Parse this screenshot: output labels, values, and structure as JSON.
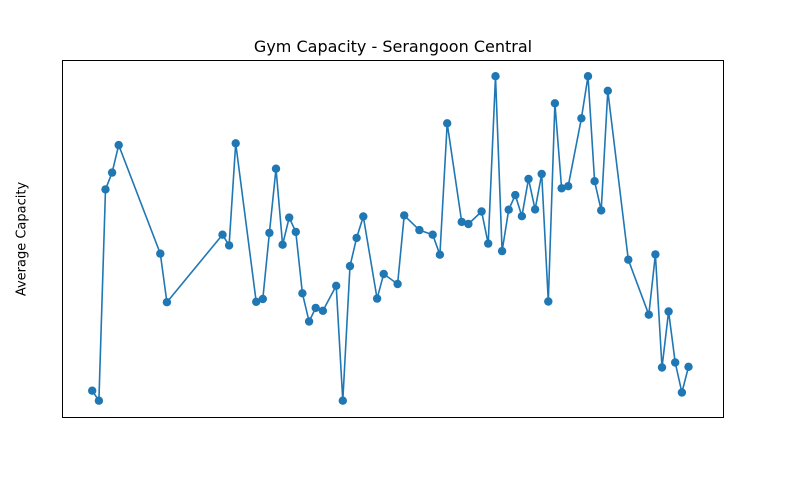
{
  "chart_data": {
    "type": "line",
    "title": "Gym Capacity - Serangoon Central",
    "xlabel": "",
    "ylabel": "Average Capacity",
    "xticks": false,
    "yticks": false,
    "grid": false,
    "xlim": [
      0,
      1
    ],
    "ylim": [
      0,
      1
    ],
    "series": [
      {
        "color": "#1f77b4",
        "marker": "circle",
        "points": [
          [
            0.045,
            0.075
          ],
          [
            0.055,
            0.047
          ],
          [
            0.065,
            0.639
          ],
          [
            0.075,
            0.686
          ],
          [
            0.085,
            0.763
          ],
          [
            0.148,
            0.459
          ],
          [
            0.158,
            0.323
          ],
          [
            0.242,
            0.512
          ],
          [
            0.252,
            0.482
          ],
          [
            0.262,
            0.768
          ],
          [
            0.293,
            0.324
          ],
          [
            0.303,
            0.332
          ],
          [
            0.313,
            0.517
          ],
          [
            0.323,
            0.697
          ],
          [
            0.333,
            0.484
          ],
          [
            0.343,
            0.56
          ],
          [
            0.353,
            0.52
          ],
          [
            0.363,
            0.348
          ],
          [
            0.373,
            0.269
          ],
          [
            0.383,
            0.307
          ],
          [
            0.394,
            0.299
          ],
          [
            0.414,
            0.369
          ],
          [
            0.424,
            0.047
          ],
          [
            0.435,
            0.424
          ],
          [
            0.445,
            0.503
          ],
          [
            0.455,
            0.563
          ],
          [
            0.476,
            0.333
          ],
          [
            0.486,
            0.402
          ],
          [
            0.507,
            0.374
          ],
          [
            0.517,
            0.566
          ],
          [
            0.54,
            0.525
          ],
          [
            0.56,
            0.512
          ],
          [
            0.571,
            0.456
          ],
          [
            0.582,
            0.824
          ],
          [
            0.604,
            0.548
          ],
          [
            0.614,
            0.542
          ],
          [
            0.634,
            0.577
          ],
          [
            0.644,
            0.487
          ],
          [
            0.655,
            0.956
          ],
          [
            0.665,
            0.466
          ],
          [
            0.675,
            0.582
          ],
          [
            0.685,
            0.623
          ],
          [
            0.695,
            0.564
          ],
          [
            0.705,
            0.668
          ],
          [
            0.715,
            0.583
          ],
          [
            0.725,
            0.682
          ],
          [
            0.735,
            0.325
          ],
          [
            0.745,
            0.88
          ],
          [
            0.755,
            0.642
          ],
          [
            0.765,
            0.648
          ],
          [
            0.785,
            0.838
          ],
          [
            0.795,
            0.956
          ],
          [
            0.805,
            0.662
          ],
          [
            0.815,
            0.58
          ],
          [
            0.825,
            0.915
          ],
          [
            0.856,
            0.442
          ],
          [
            0.887,
            0.288
          ],
          [
            0.897,
            0.457
          ],
          [
            0.907,
            0.14
          ],
          [
            0.917,
            0.297
          ],
          [
            0.927,
            0.154
          ],
          [
            0.937,
            0.07
          ],
          [
            0.947,
            0.142
          ]
        ]
      }
    ]
  }
}
